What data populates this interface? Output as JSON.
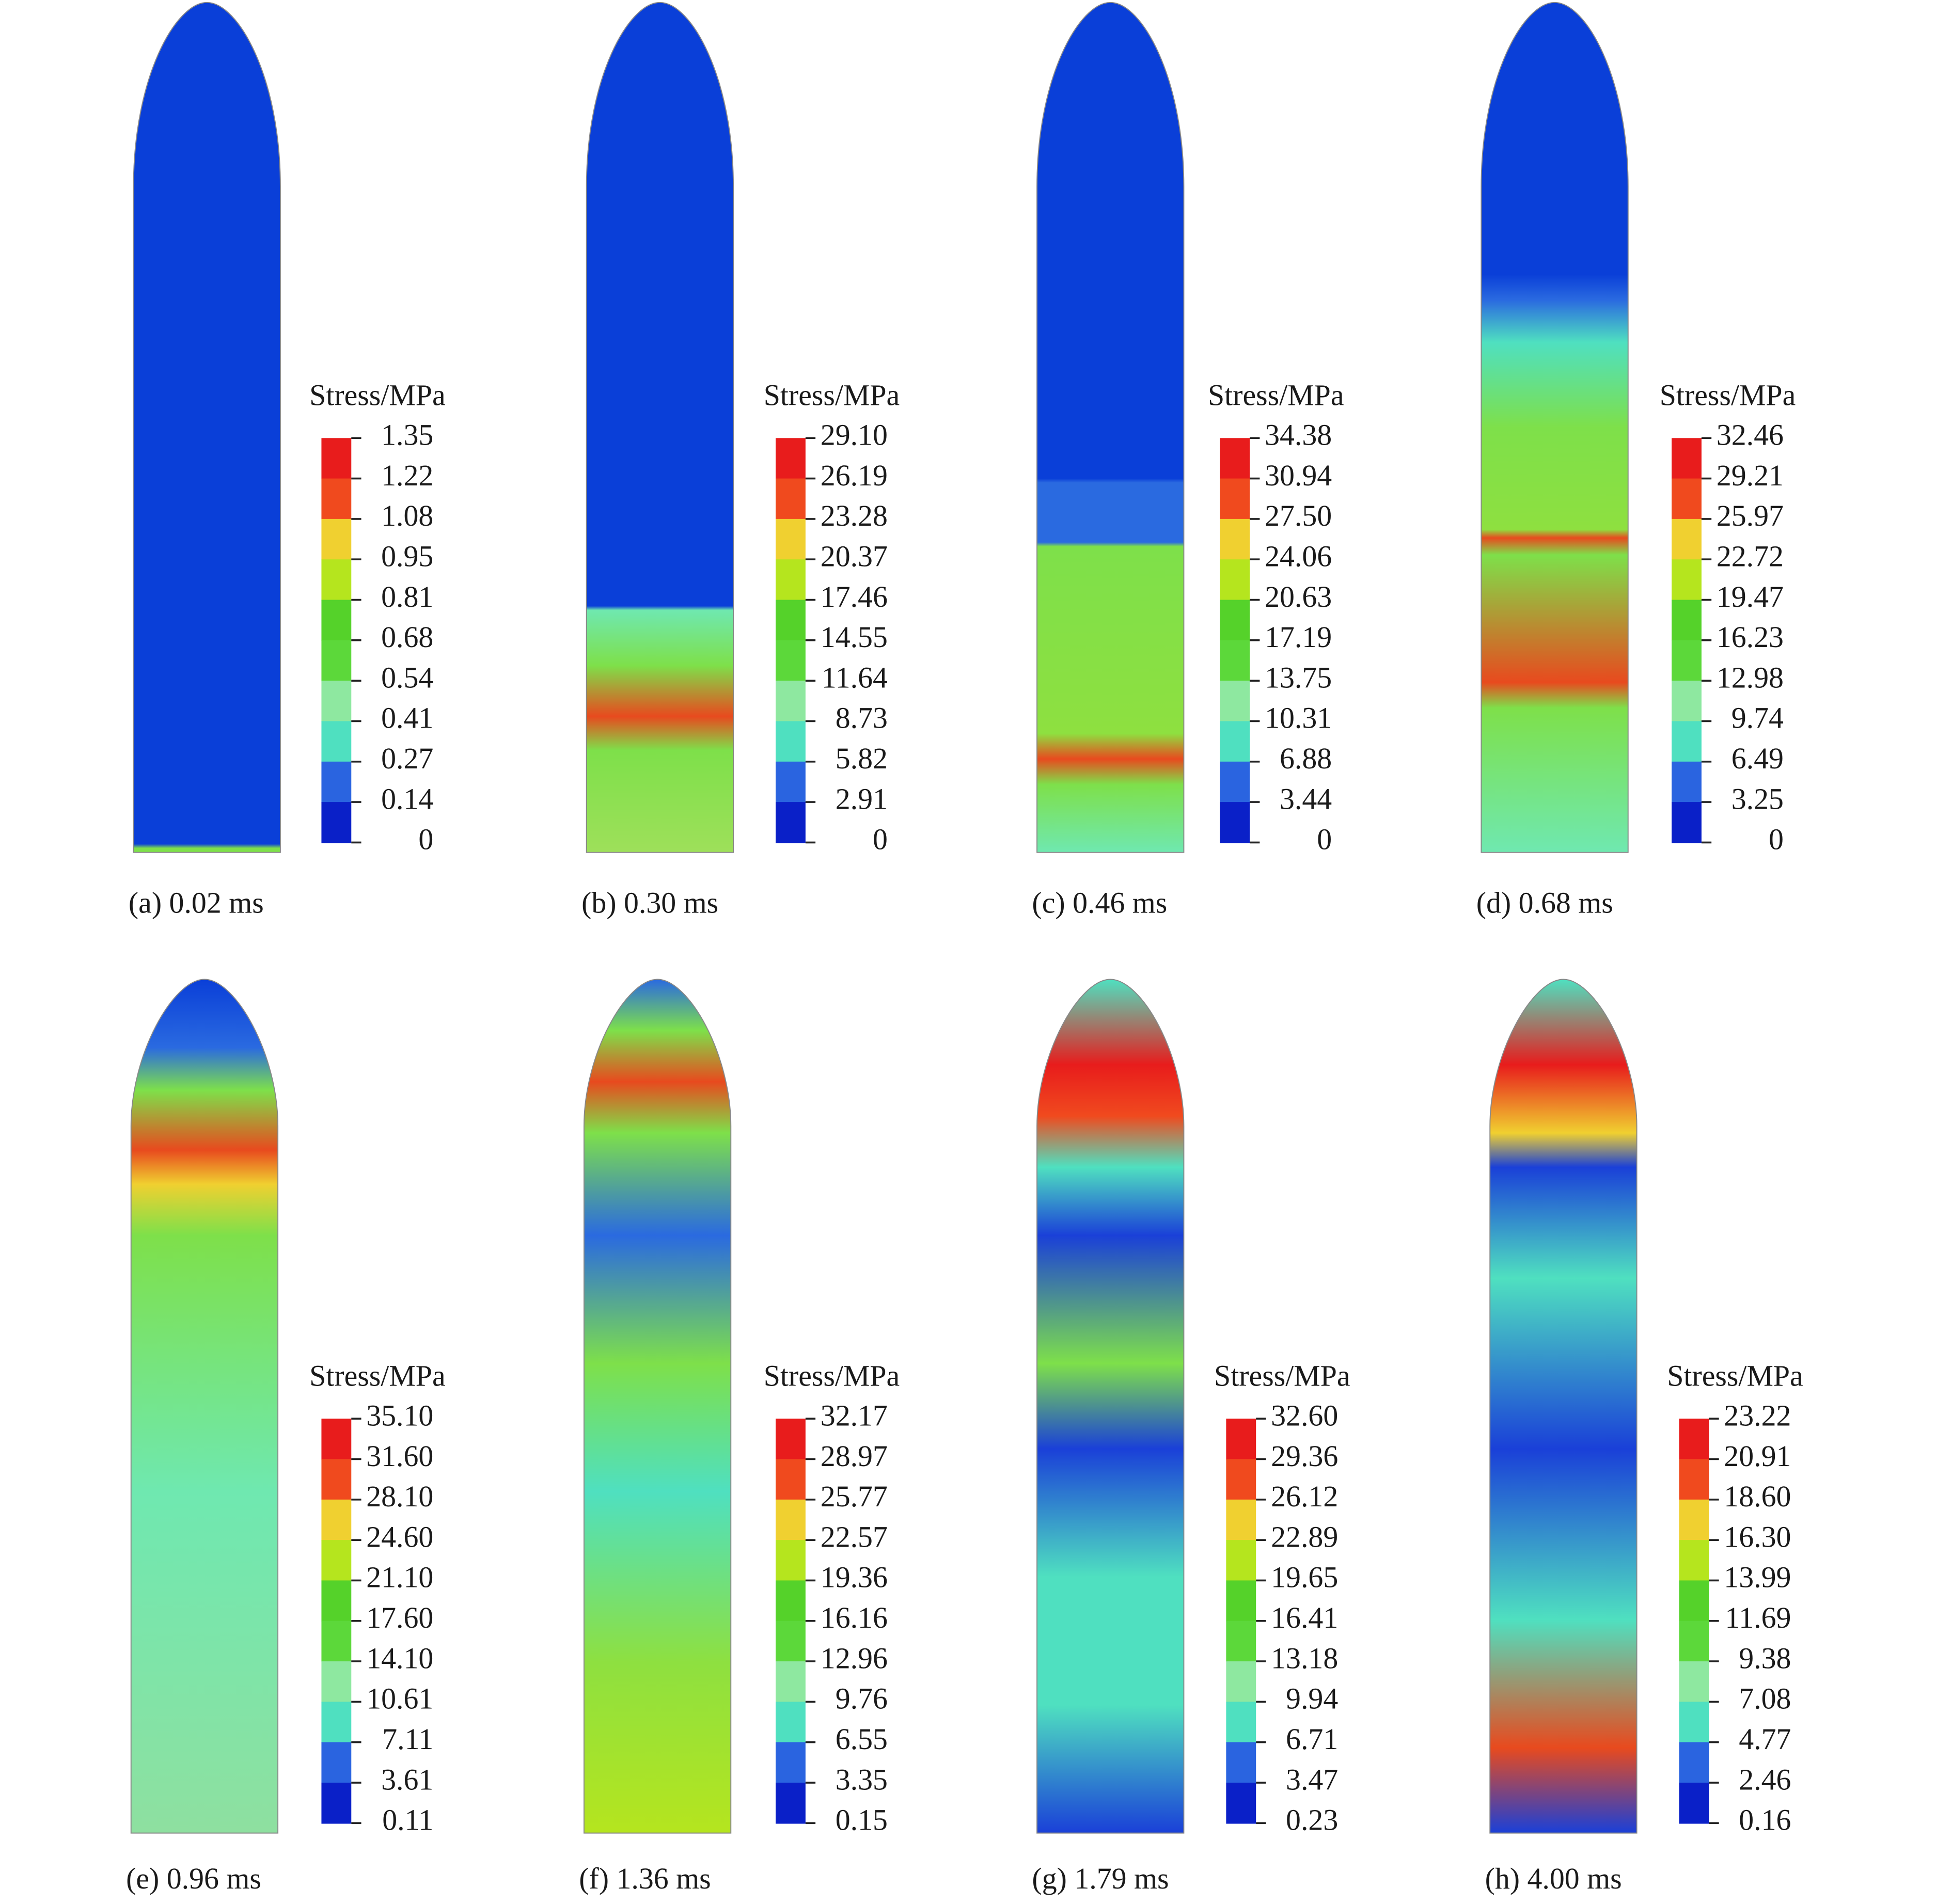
{
  "panels": [
    {
      "caption": "(a) 0.02 ms",
      "legend_title": "Stress/MPa",
      "ticks": [
        "1.35",
        "1.22",
        "1.08",
        "0.95",
        "0.81",
        "0.68",
        "0.54",
        "0.41",
        "0.27",
        "0.14",
        "0"
      ]
    },
    {
      "caption": "(b) 0.30 ms",
      "legend_title": "Stress/MPa",
      "ticks": [
        "29.10",
        "26.19",
        "23.28",
        "20.37",
        "17.46",
        "14.55",
        "11.64",
        "8.73",
        "5.82",
        "2.91",
        "0"
      ]
    },
    {
      "caption": "(c) 0.46 ms",
      "legend_title": "Stress/MPa",
      "ticks": [
        "34.38",
        "30.94",
        "27.50",
        "24.06",
        "20.63",
        "17.19",
        "13.75",
        "10.31",
        "6.88",
        "3.44",
        "0"
      ]
    },
    {
      "caption": "(d) 0.68 ms",
      "legend_title": "Stress/MPa",
      "ticks": [
        "32.46",
        "29.21",
        "25.97",
        "22.72",
        "19.47",
        "16.23",
        "12.98",
        "9.74",
        "6.49",
        "3.25",
        "0"
      ]
    },
    {
      "caption": "(e) 0.96 ms",
      "legend_title": "Stress/MPa",
      "ticks": [
        "35.10",
        "31.60",
        "28.10",
        "24.60",
        "21.10",
        "17.60",
        "14.10",
        "10.61",
        "7.11",
        "3.61",
        "0.11"
      ]
    },
    {
      "caption": "(f) 1.36 ms",
      "legend_title": "Stress/MPa",
      "ticks": [
        "32.17",
        "28.97",
        "25.77",
        "22.57",
        "19.36",
        "16.16",
        "12.96",
        "9.76",
        "6.55",
        "3.35",
        "0.15"
      ]
    },
    {
      "caption": "(g) 1.79 ms",
      "legend_title": "Stress/MPa",
      "ticks": [
        "32.60",
        "29.36",
        "26.12",
        "22.89",
        "19.65",
        "16.41",
        "13.18",
        "9.94",
        "6.71",
        "3.47",
        "0.23"
      ]
    },
    {
      "caption": "(h) 4.00 ms",
      "legend_title": "Stress/MPa",
      "ticks": [
        "23.22",
        "20.91",
        "18.60",
        "16.30",
        "13.99",
        "11.69",
        "9.38",
        "7.08",
        "4.77",
        "2.46",
        "0.16"
      ]
    }
  ]
}
